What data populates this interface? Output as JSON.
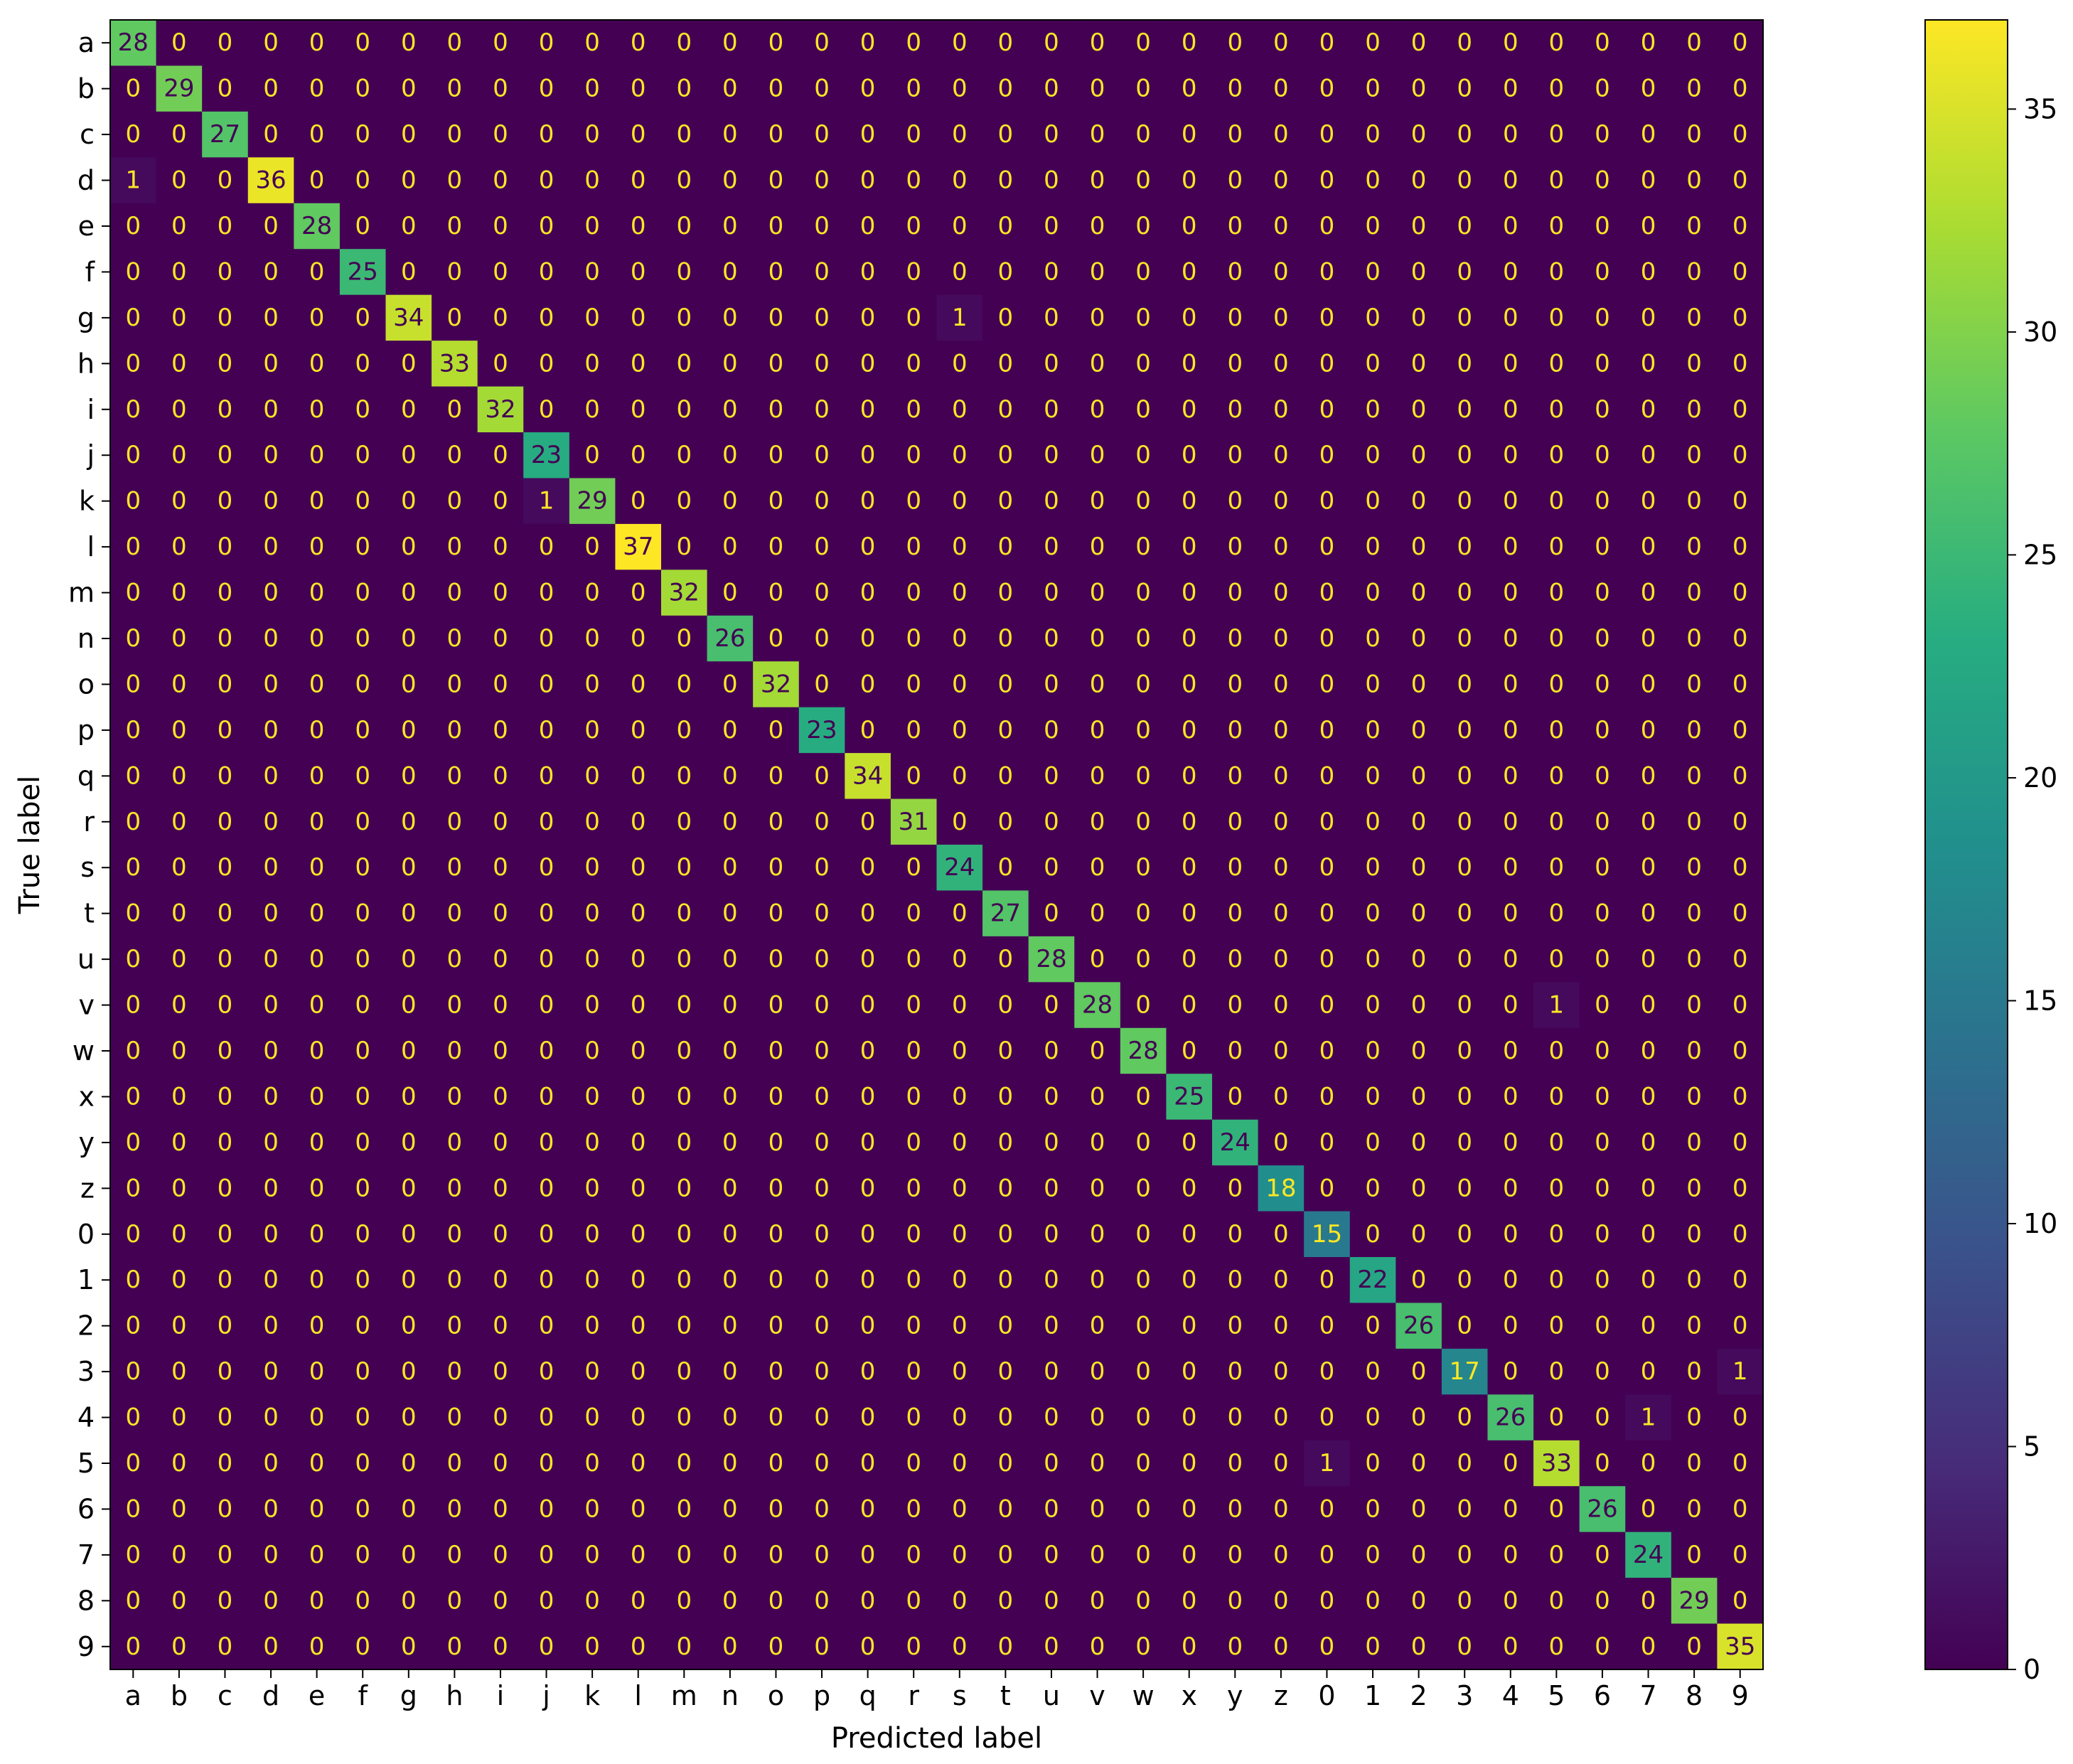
{
  "chart_data": {
    "type": "heatmap",
    "xlabel": "Predicted label",
    "ylabel": "True label",
    "labels": [
      "a",
      "b",
      "c",
      "d",
      "e",
      "f",
      "g",
      "h",
      "i",
      "j",
      "k",
      "l",
      "m",
      "n",
      "o",
      "p",
      "q",
      "r",
      "s",
      "t",
      "u",
      "v",
      "w",
      "x",
      "y",
      "z",
      "0",
      "1",
      "2",
      "3",
      "4",
      "5",
      "6",
      "7",
      "8",
      "9"
    ],
    "diagonal": [
      28,
      29,
      27,
      36,
      28,
      25,
      34,
      33,
      32,
      23,
      29,
      37,
      32,
      26,
      32,
      23,
      34,
      31,
      24,
      27,
      28,
      28,
      28,
      25,
      24,
      18,
      15,
      22,
      26,
      17,
      26,
      33,
      26,
      24,
      29,
      35
    ],
    "off_diagonal": [
      {
        "true": "d",
        "pred": "a",
        "value": 1
      },
      {
        "true": "g",
        "pred": "s",
        "value": 1
      },
      {
        "true": "k",
        "pred": "j",
        "value": 1
      },
      {
        "true": "v",
        "pred": "5",
        "value": 1
      },
      {
        "true": "3",
        "pred": "9",
        "value": 1
      },
      {
        "true": "4",
        "pred": "7",
        "value": 1
      },
      {
        "true": "5",
        "pred": "0",
        "value": 1
      }
    ],
    "colorbar": {
      "colormap": "viridis",
      "min": 0,
      "max": 37,
      "ticks": [
        0,
        5,
        10,
        15,
        20,
        25,
        30,
        35
      ]
    },
    "grid": false
  }
}
